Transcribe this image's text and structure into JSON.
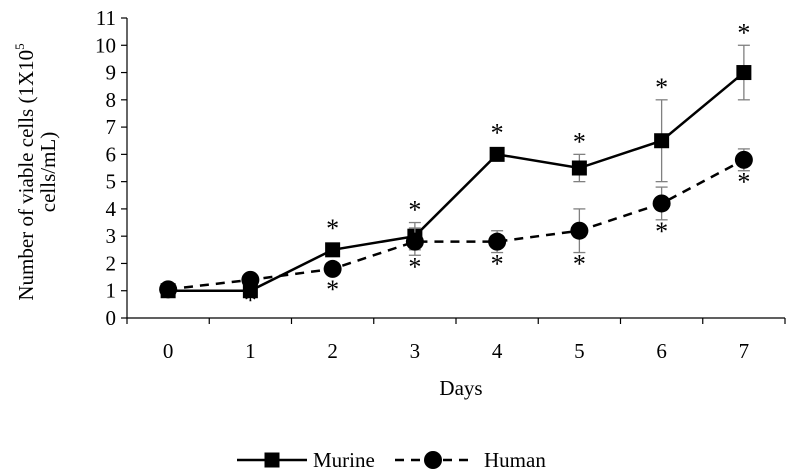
{
  "chart_data": {
    "type": "line",
    "xlabel": "Days",
    "ylabel": "Number of viable cells (1X10⁵ cells/mL)",
    "xlim": [
      -0.5,
      7.5
    ],
    "ylim": [
      0,
      11
    ],
    "x_ticks": [
      0,
      1,
      2,
      3,
      4,
      5,
      6,
      7
    ],
    "y_ticks": [
      0,
      1,
      2,
      3,
      4,
      5,
      6,
      7,
      8,
      9,
      10,
      11
    ],
    "grid": false,
    "legend_position": "bottom",
    "significance_marker": "*",
    "series": [
      {
        "name": "Murine",
        "line_style": "solid",
        "marker": "square",
        "color": "#000000",
        "x": [
          0,
          1,
          2,
          3,
          4,
          5,
          6,
          7
        ],
        "y": [
          1.0,
          1.0,
          2.5,
          3.0,
          6.0,
          5.5,
          6.5,
          9.0
        ],
        "error": [
          0,
          0,
          0.2,
          0.5,
          0.1,
          0.5,
          1.5,
          1.0
        ],
        "significant": [
          false,
          false,
          true,
          true,
          true,
          true,
          true,
          true
        ],
        "sig_position": "above"
      },
      {
        "name": "Human",
        "line_style": "dashed",
        "marker": "circle",
        "color": "#000000",
        "x": [
          0,
          1,
          2,
          3,
          4,
          5,
          6,
          7
        ],
        "y": [
          1.05,
          1.4,
          1.8,
          2.8,
          2.8,
          3.2,
          4.2,
          5.8
        ],
        "error": [
          0,
          0,
          0.2,
          0.5,
          0.4,
          0.8,
          0.6,
          0.4
        ],
        "significant": [
          false,
          true,
          true,
          true,
          true,
          true,
          true,
          true
        ],
        "sig_position": "below"
      }
    ]
  }
}
